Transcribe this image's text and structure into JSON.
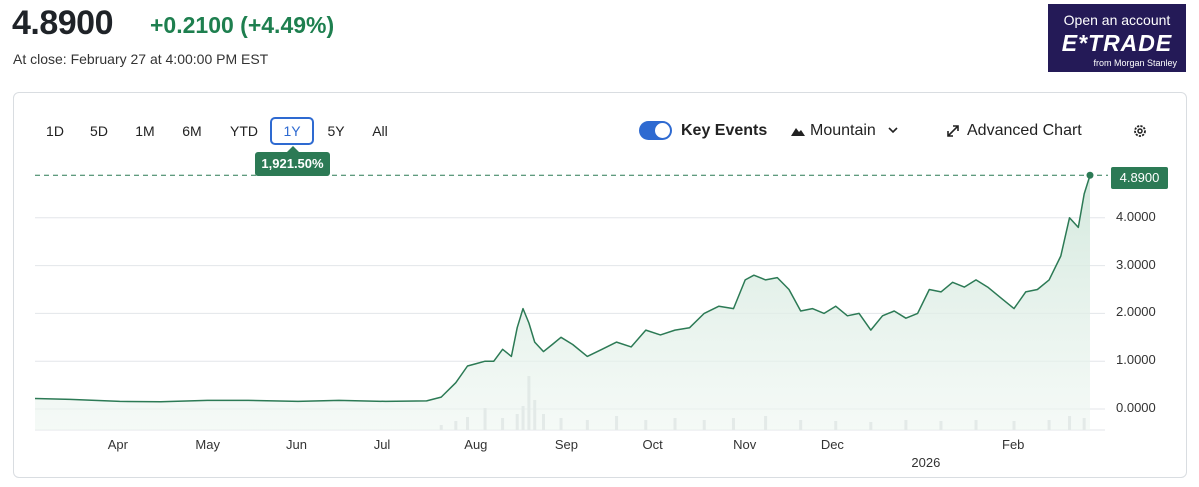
{
  "header": {
    "price": "4.8900",
    "change": "+0.2100 (+4.49%)",
    "close_note": "At close: February 27 at 4:00:00 PM EST"
  },
  "ad": {
    "top": "Open an account",
    "logo": "E*TRADE",
    "sub": "from Morgan Stanley"
  },
  "toolbar": {
    "ranges": [
      "1D",
      "5D",
      "1M",
      "6M",
      "YTD",
      "1Y",
      "5Y",
      "All"
    ],
    "active_range": "1Y",
    "tooltip": "1,921.50%",
    "key_events_label": "Key Events",
    "key_events_on": true,
    "chart_type_label": "Mountain",
    "advanced_label": "Advanced Chart",
    "icons": [
      "mountain-icon",
      "chevron-down-icon",
      "expand-icon",
      "gear-icon"
    ]
  },
  "colors": {
    "line": "#2c7a55",
    "fill": "#e6f2ec",
    "accent": "#2e6ad1",
    "up": "#1e7f4f"
  },
  "chart_data": {
    "type": "area",
    "ylim": [
      -0.25,
      5.0
    ],
    "yticks": [
      "0.0000",
      "1.0000",
      "2.0000",
      "3.0000",
      "4.0000"
    ],
    "xticks": [
      {
        "label": "Apr",
        "at": "2025-04-01"
      },
      {
        "label": "May",
        "at": "2025-05-01"
      },
      {
        "label": "Jun",
        "at": "2025-06-01"
      },
      {
        "label": "Jul",
        "at": "2025-07-01"
      },
      {
        "label": "Aug",
        "at": "2025-08-01"
      },
      {
        "label": "Sep",
        "at": "2025-09-01"
      },
      {
        "label": "Oct",
        "at": "2025-10-01"
      },
      {
        "label": "Nov",
        "at": "2025-11-01"
      },
      {
        "label": "Dec",
        "at": "2025-12-01"
      },
      {
        "label": "2026",
        "at": "2026-01-01"
      },
      {
        "label": "Feb",
        "at": "2026-02-01"
      }
    ],
    "last_value": "4.8900",
    "series": [
      {
        "x": [
          "2025-03-03",
          "2025-03-15",
          "2025-04-01",
          "2025-04-15",
          "2025-05-01",
          "2025-05-15",
          "2025-06-01",
          "2025-06-15",
          "2025-07-01",
          "2025-07-15",
          "2025-07-20",
          "2025-07-25",
          "2025-07-29",
          "2025-08-01",
          "2025-08-04",
          "2025-08-07",
          "2025-08-10",
          "2025-08-13",
          "2025-08-15",
          "2025-08-17",
          "2025-08-19",
          "2025-08-21",
          "2025-08-24",
          "2025-08-27",
          "2025-08-30",
          "2025-09-03",
          "2025-09-08",
          "2025-09-13",
          "2025-09-18",
          "2025-09-23",
          "2025-09-28",
          "2025-10-03",
          "2025-10-08",
          "2025-10-13",
          "2025-10-18",
          "2025-10-23",
          "2025-10-28",
          "2025-11-01",
          "2025-11-04",
          "2025-11-08",
          "2025-11-12",
          "2025-11-16",
          "2025-11-20",
          "2025-11-24",
          "2025-11-28",
          "2025-12-02",
          "2025-12-06",
          "2025-12-10",
          "2025-12-14",
          "2025-12-18",
          "2025-12-22",
          "2025-12-26",
          "2025-12-30",
          "2026-01-03",
          "2026-01-07",
          "2026-01-11",
          "2026-01-15",
          "2026-01-19",
          "2026-01-23",
          "2026-01-28",
          "2026-02-01",
          "2026-02-05",
          "2026-02-09",
          "2026-02-13",
          "2026-02-17",
          "2026-02-20",
          "2026-02-23",
          "2026-02-25",
          "2026-02-27"
        ],
        "y": [
          0.22,
          0.2,
          0.16,
          0.15,
          0.18,
          0.18,
          0.16,
          0.18,
          0.16,
          0.17,
          0.25,
          0.55,
          0.9,
          0.95,
          1.0,
          1.0,
          1.25,
          1.1,
          1.7,
          2.1,
          1.8,
          1.4,
          1.2,
          1.35,
          1.5,
          1.35,
          1.1,
          1.25,
          1.4,
          1.3,
          1.65,
          1.55,
          1.65,
          1.7,
          2.0,
          2.15,
          2.1,
          2.7,
          2.8,
          2.7,
          2.75,
          2.5,
          2.05,
          2.1,
          2.0,
          2.15,
          1.95,
          2.0,
          1.65,
          1.95,
          2.05,
          1.9,
          2.0,
          2.5,
          2.45,
          2.65,
          2.55,
          2.7,
          2.55,
          2.3,
          2.1,
          2.45,
          2.5,
          2.7,
          3.2,
          4.0,
          3.8,
          4.5,
          4.89
        ]
      }
    ],
    "volume": {
      "x": [
        "2025-07-20",
        "2025-07-25",
        "2025-07-29",
        "2025-08-04",
        "2025-08-10",
        "2025-08-15",
        "2025-08-17",
        "2025-08-19",
        "2025-08-21",
        "2025-08-24",
        "2025-08-30",
        "2025-09-08",
        "2025-09-18",
        "2025-09-28",
        "2025-10-08",
        "2025-10-18",
        "2025-10-28",
        "2025-11-08",
        "2025-11-20",
        "2025-12-02",
        "2025-12-14",
        "2025-12-26",
        "2026-01-07",
        "2026-01-19",
        "2026-02-01",
        "2026-02-13",
        "2026-02-20",
        "2026-02-25"
      ],
      "v": [
        5,
        9,
        13,
        22,
        12,
        16,
        24,
        54,
        30,
        16,
        12,
        10,
        14,
        10,
        12,
        10,
        12,
        14,
        10,
        9,
        8,
        10,
        9,
        10,
        9,
        10,
        14,
        12
      ]
    }
  }
}
